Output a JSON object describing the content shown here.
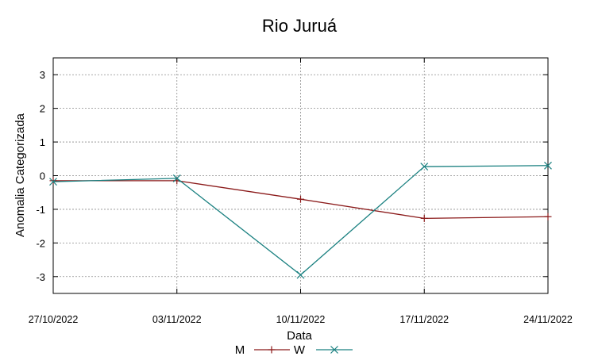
{
  "chart_data": {
    "type": "line",
    "title": "Rio Juruá",
    "xlabel": "Data",
    "ylabel": "Anomalia Categorizada",
    "x": [
      "27/10/2022",
      "03/11/2022",
      "10/11/2022",
      "17/11/2022",
      "24/11/2022"
    ],
    "ylim": [
      -3.5,
      3.5
    ],
    "yticks": [
      -3,
      -2,
      -1,
      0,
      1,
      2,
      3
    ],
    "grid": true,
    "legend": "bottom",
    "series": [
      {
        "name": "M",
        "color": "#8b1a1a",
        "marker": "plus",
        "values": [
          -0.15,
          -0.15,
          -0.7,
          -1.27,
          -1.22
        ]
      },
      {
        "name": "W",
        "color": "#1a8080",
        "marker": "cross",
        "values": [
          -0.18,
          -0.08,
          -2.95,
          0.27,
          0.3
        ]
      }
    ]
  }
}
